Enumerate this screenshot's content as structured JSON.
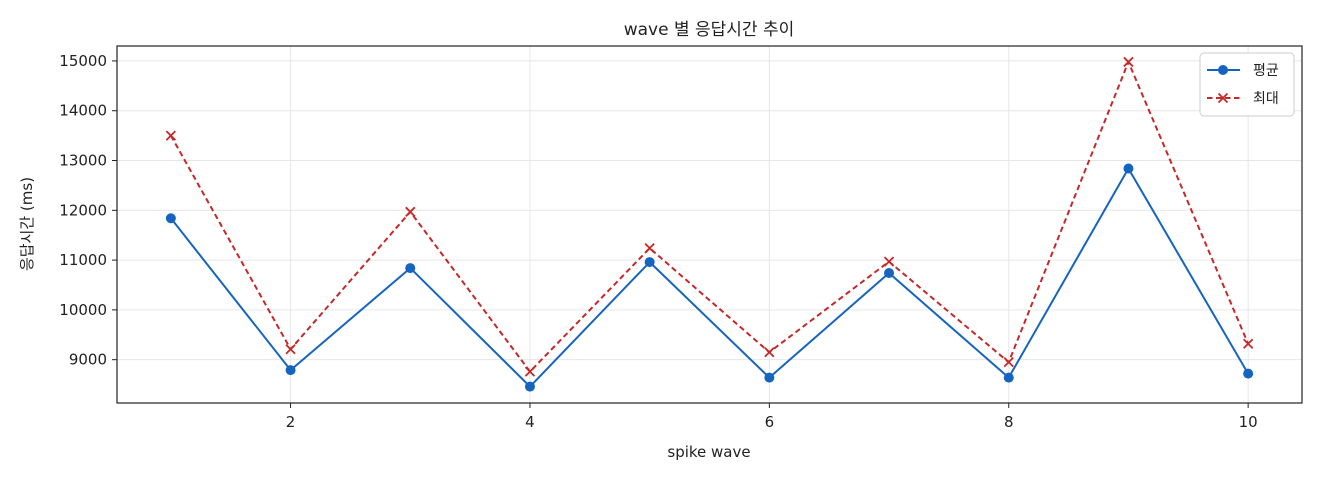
{
  "chart_data": {
    "type": "line",
    "title": "wave 별 응답시간 추이",
    "xlabel": "spike wave",
    "ylabel": "응답시간 (ms)",
    "x": [
      1,
      2,
      3,
      4,
      5,
      6,
      7,
      8,
      9,
      10
    ],
    "xticks": [
      2,
      4,
      6,
      8,
      10
    ],
    "xlim": [
      0.55,
      10.45
    ],
    "yticks": [
      9000,
      10000,
      11000,
      12000,
      13000,
      14000,
      15000
    ],
    "ylim": [
      8130,
      15300
    ],
    "grid": true,
    "legend_position": "top-right",
    "series": [
      {
        "name": "평균",
        "values": [
          11840,
          8790,
          10840,
          8460,
          10960,
          8640,
          10740,
          8640,
          12840,
          8720
        ],
        "color": "#1565c0",
        "line_style": "solid",
        "marker": "circle"
      },
      {
        "name": "최대",
        "values": [
          13500,
          9210,
          11970,
          8760,
          11240,
          9150,
          10970,
          8950,
          14980,
          9320
        ],
        "color": "#c62828",
        "line_style": "dashed",
        "marker": "x"
      }
    ]
  }
}
